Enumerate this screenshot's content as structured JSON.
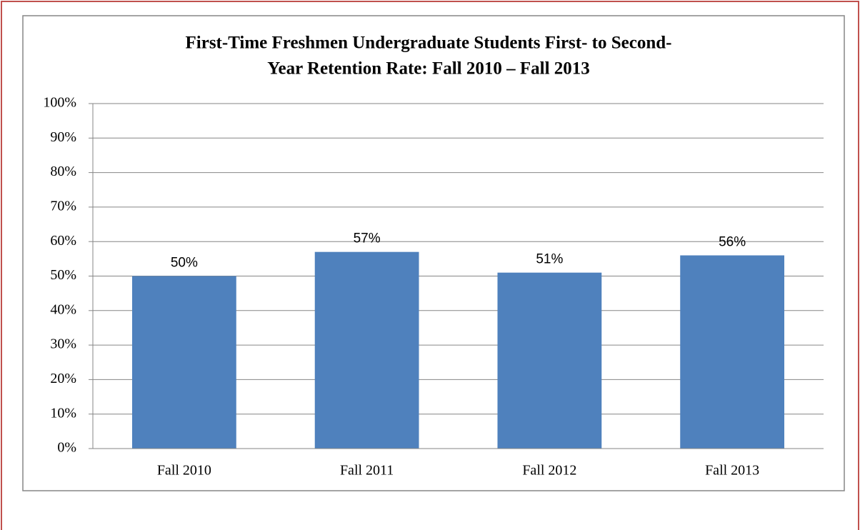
{
  "chart_data": {
    "type": "bar",
    "title": [
      "First-Time Freshmen Undergraduate Students First- to Second-",
      "Year Retention Rate: Fall 2010 – Fall 2013"
    ],
    "categories": [
      "Fall 2010",
      "Fall 2011",
      "Fall 2012",
      "Fall 2013"
    ],
    "values": [
      50,
      57,
      51,
      56
    ],
    "value_labels": [
      "50%",
      "57%",
      "51%",
      "56%"
    ],
    "color": "#4f81bd",
    "ylim": [
      0,
      100
    ],
    "yticks": [
      {
        "value": 0,
        "label": "0%"
      },
      {
        "value": 10,
        "label": "10%"
      },
      {
        "value": 20,
        "label": "20%"
      },
      {
        "value": 30,
        "label": "30%"
      },
      {
        "value": 40,
        "label": "40%"
      },
      {
        "value": 50,
        "label": "50%"
      },
      {
        "value": 60,
        "label": "60%"
      },
      {
        "value": 70,
        "label": "70%"
      },
      {
        "value": 80,
        "label": "80%"
      },
      {
        "value": 90,
        "label": "90%"
      },
      {
        "value": 100,
        "label": "100%"
      }
    ],
    "grid": true
  }
}
